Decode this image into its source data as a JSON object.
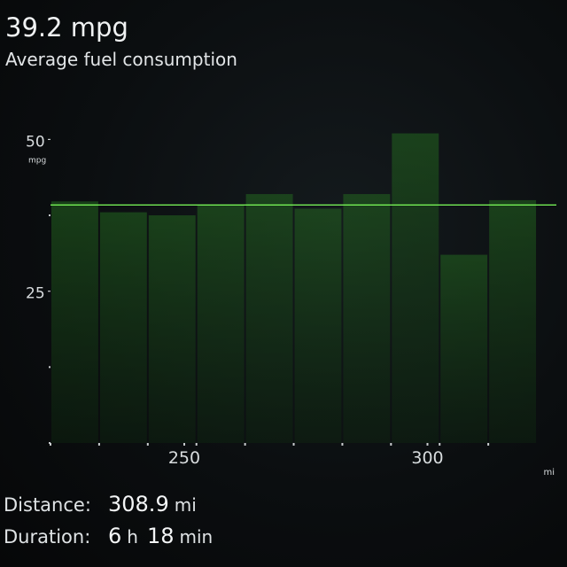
{
  "summary": {
    "average_value": "39.2 mpg",
    "average_label": "Average fuel consumption"
  },
  "chart_data": {
    "type": "bar",
    "y_unit": "mpg",
    "x_unit": "mi",
    "ylim": [
      0,
      54
    ],
    "xlim": [
      222.5,
      326.5
    ],
    "y_ticks": [
      {
        "value": 50,
        "label": "50"
      },
      {
        "value": 25,
        "label": "25"
      }
    ],
    "x_ticks": [
      {
        "value": 250,
        "label": "250"
      },
      {
        "value": 300,
        "label": "300"
      }
    ],
    "x_minor_ticks": [
      222.5,
      232.5,
      242.5,
      252.5,
      262.5,
      272.5,
      282.5,
      292.5,
      302.5,
      312.5
    ],
    "average_line": 39.2,
    "segments": [
      {
        "x_start": 222.5,
        "x_end": 232.5,
        "value": 39.8
      },
      {
        "x_start": 232.5,
        "x_end": 242.5,
        "value": 38.0
      },
      {
        "x_start": 242.5,
        "x_end": 252.5,
        "value": 37.5
      },
      {
        "x_start": 252.5,
        "x_end": 262.5,
        "value": 39.2
      },
      {
        "x_start": 262.5,
        "x_end": 272.5,
        "value": 41.0
      },
      {
        "x_start": 272.5,
        "x_end": 282.5,
        "value": 38.6
      },
      {
        "x_start": 282.5,
        "x_end": 292.5,
        "value": 41.0
      },
      {
        "x_start": 292.5,
        "x_end": 302.5,
        "value": 51.0
      },
      {
        "x_start": 302.5,
        "x_end": 312.5,
        "value": 31.0
      },
      {
        "x_start": 312.5,
        "x_end": 322.5,
        "value": 40.0
      }
    ],
    "colors": {
      "bar_fill": "#1f5a1c",
      "bar_cap": "#3cff3c",
      "average_line": "#7dff5a",
      "axis": "#c8ccce"
    }
  },
  "stats": {
    "distance_label": "Distance:",
    "distance_value": "308.9",
    "distance_unit": "mi",
    "duration_label": "Duration:",
    "duration_hours": "6",
    "duration_hours_unit": "h",
    "duration_minutes": "18",
    "duration_minutes_unit": "min"
  }
}
